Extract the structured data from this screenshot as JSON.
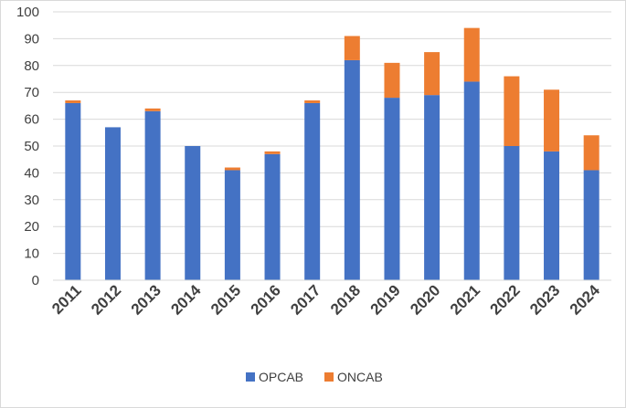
{
  "chart_data": {
    "type": "bar",
    "stacked": true,
    "categories": [
      "2011",
      "2012",
      "2013",
      "2014",
      "2015",
      "2016",
      "2017",
      "2018",
      "2019",
      "2020",
      "2021",
      "2022",
      "2023",
      "2024"
    ],
    "series": [
      {
        "name": "OPCAB",
        "color": "#4472C4",
        "values": [
          66,
          57,
          63,
          50,
          41,
          47,
          66,
          82,
          68,
          69,
          74,
          50,
          48,
          41
        ]
      },
      {
        "name": "ONCAB",
        "color": "#ED7D31",
        "values": [
          1,
          0,
          1,
          0,
          1,
          1,
          1,
          9,
          13,
          16,
          20,
          26,
          23,
          13
        ]
      }
    ],
    "yticks": [
      "0",
      "10",
      "20",
      "30",
      "40",
      "50",
      "60",
      "70",
      "80",
      "90",
      "100"
    ],
    "ylim": [
      0,
      100
    ],
    "grid": true,
    "legend_position": "bottom"
  }
}
